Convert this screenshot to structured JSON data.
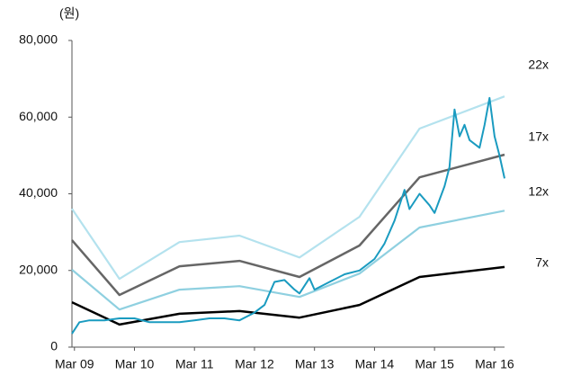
{
  "chart_data": {
    "type": "line",
    "y_label": "(원)",
    "xlim": [
      -0.5,
      86
    ],
    "xticks": [
      {
        "value": 0,
        "label": "Mar 09"
      },
      {
        "value": 12,
        "label": "Mar 10"
      },
      {
        "value": 24,
        "label": "Mar 11"
      },
      {
        "value": 36,
        "label": "Mar 12"
      },
      {
        "value": 48,
        "label": "Mar 13"
      },
      {
        "value": 60,
        "label": "Mar 14"
      },
      {
        "value": 72,
        "label": "Mar 15"
      },
      {
        "value": 84,
        "label": "Mar 16"
      }
    ],
    "ylim": [
      0,
      80000
    ],
    "yticks": [
      0,
      {
        "value": 20000,
        "label": "20,000"
      },
      {
        "value": 40000,
        "label": "40,000"
      },
      {
        "value": 60000,
        "label": "60,000"
      },
      {
        "value": 80000,
        "label": "80,000"
      }
    ],
    "series": [
      {
        "name": "22x",
        "color": "#b4e2ee",
        "x": [
          -0.5,
          9,
          21,
          33,
          45,
          57,
          69,
          86
        ],
        "values": [
          36100,
          17800,
          27400,
          29100,
          23400,
          34000,
          57000,
          65400
        ]
      },
      {
        "name": "17x",
        "color": "#666666",
        "x": [
          -0.5,
          9,
          21,
          33,
          45,
          57,
          69,
          86
        ],
        "values": [
          27900,
          13600,
          21100,
          22500,
          18300,
          26500,
          44300,
          50200
        ]
      },
      {
        "name": "12x",
        "color": "#8fd0e0",
        "x": [
          -0.5,
          9,
          21,
          33,
          45,
          57,
          69,
          86
        ],
        "values": [
          20200,
          9800,
          15000,
          15900,
          13100,
          19200,
          31200,
          35600
        ]
      },
      {
        "name": "7x",
        "color": "#000000",
        "x": [
          -0.5,
          9,
          21,
          33,
          45,
          57,
          69,
          86
        ],
        "values": [
          11700,
          5900,
          8700,
          9400,
          7700,
          11000,
          18300,
          20900
        ]
      },
      {
        "color": "#1a9bc0",
        "x": [
          -0.5,
          1,
          3,
          6,
          9,
          12,
          15,
          18,
          21,
          24,
          27,
          30,
          33,
          36,
          38,
          39,
          40,
          42,
          44,
          45,
          47,
          48,
          51,
          54,
          57,
          60,
          62,
          63,
          64,
          65,
          66,
          67,
          69,
          71,
          72,
          74,
          75,
          76,
          77,
          78,
          79,
          81,
          82,
          83,
          84,
          85,
          86
        ],
        "values": [
          3500,
          6500,
          7000,
          7000,
          7500,
          7500,
          6500,
          6500,
          6500,
          7000,
          7500,
          7500,
          7000,
          9000,
          11000,
          14000,
          17000,
          17500,
          15000,
          14000,
          18000,
          15000,
          17000,
          19000,
          20000,
          23000,
          27000,
          30000,
          33000,
          37000,
          41000,
          36000,
          40000,
          37000,
          35000,
          42000,
          47000,
          62000,
          55000,
          58000,
          54000,
          52000,
          58000,
          65000,
          55000,
          50000,
          44000
        ]
      }
    ]
  }
}
